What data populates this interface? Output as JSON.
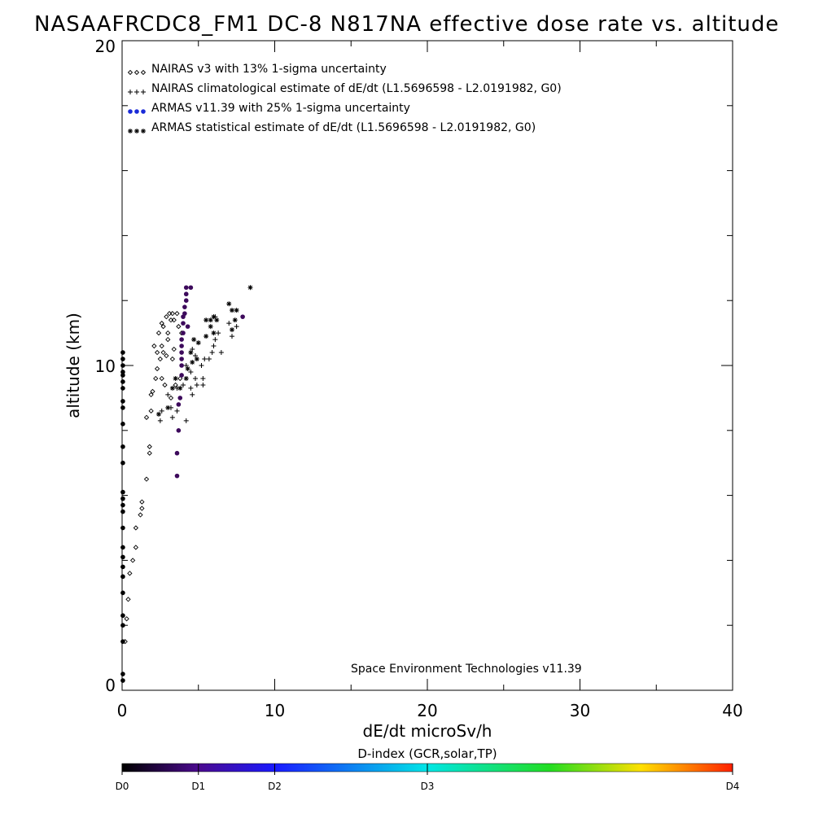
{
  "chart_data": {
    "type": "scatter",
    "title": "NASAAFRCDC8_FM1 DC-8   N817NA effective dose rate vs. altitude",
    "xlabel": "dE/dt microSv/h",
    "ylabel": "altitude (km)",
    "xlim": [
      0,
      40
    ],
    "ylim": [
      0,
      20
    ],
    "x_ticks": [
      "0",
      "10",
      "20",
      "30",
      "40"
    ],
    "y_ticks": [
      "0",
      "10",
      "20"
    ],
    "grid": false,
    "legend_placement": "top-left",
    "annotation": "Space Environment Technologies v11.39",
    "colorbar": {
      "title": "D-index (GCR,solar,TP)",
      "tick_labels": [
        "D0",
        "D1",
        "D2",
        "D3",
        "D4"
      ],
      "tick_positions": [
        0.0,
        0.125,
        0.25,
        0.5,
        1.0
      ]
    },
    "series": [
      {
        "name": "NAIRAS v3 with 13% 1-sigma uncertainty",
        "marker": "diamond",
        "color": "#000000",
        "points": [
          [
            0.2,
            1.5
          ],
          [
            0.3,
            2.2
          ],
          [
            0.4,
            2.8
          ],
          [
            0.5,
            3.6
          ],
          [
            0.7,
            4.0
          ],
          [
            0.9,
            4.4
          ],
          [
            0.9,
            5.0
          ],
          [
            1.2,
            5.4
          ],
          [
            1.3,
            5.8
          ],
          [
            1.3,
            5.6
          ],
          [
            1.6,
            6.5
          ],
          [
            1.8,
            7.3
          ],
          [
            1.8,
            7.5
          ],
          [
            1.9,
            8.6
          ],
          [
            1.6,
            8.4
          ],
          [
            1.9,
            9.1
          ],
          [
            2.0,
            9.2
          ],
          [
            2.2,
            9.6
          ],
          [
            2.6,
            9.6
          ],
          [
            2.3,
            9.9
          ],
          [
            2.8,
            9.4
          ],
          [
            2.5,
            10.2
          ],
          [
            2.9,
            10.3
          ],
          [
            2.3,
            10.4
          ],
          [
            2.6,
            10.6
          ],
          [
            2.7,
            10.4
          ],
          [
            3.0,
            10.8
          ],
          [
            2.1,
            10.6
          ],
          [
            2.4,
            11.0
          ],
          [
            2.7,
            11.2
          ],
          [
            3.0,
            11.0
          ],
          [
            3.2,
            11.4
          ],
          [
            2.6,
            11.3
          ],
          [
            3.4,
            11.4
          ],
          [
            3.7,
            11.2
          ],
          [
            3.9,
            11.0
          ],
          [
            3.3,
            10.2
          ],
          [
            3.5,
            9.4
          ],
          [
            3.8,
            9.6
          ],
          [
            3.2,
            9.0
          ],
          [
            3.4,
            10.5
          ],
          [
            2.9,
            11.5
          ],
          [
            3.1,
            11.6
          ],
          [
            3.6,
            11.6
          ],
          [
            3.3,
            11.6
          ]
        ]
      },
      {
        "name": "NAIRAS climatological estimate of dE/dt (L1.5696598 - L2.0191982, G0)",
        "marker": "plus",
        "color": "#000000",
        "points": [
          [
            2.5,
            8.3
          ],
          [
            3.3,
            8.4
          ],
          [
            3.6,
            8.6
          ],
          [
            4.2,
            8.3
          ],
          [
            2.6,
            8.6
          ],
          [
            3.2,
            8.7
          ],
          [
            3.0,
            9.1
          ],
          [
            3.6,
            9.3
          ],
          [
            4.0,
            9.4
          ],
          [
            4.5,
            9.3
          ],
          [
            4.6,
            9.1
          ],
          [
            4.9,
            9.4
          ],
          [
            5.3,
            9.4
          ],
          [
            5.3,
            9.6
          ],
          [
            4.8,
            9.6
          ],
          [
            4.5,
            9.8
          ],
          [
            4.2,
            10.0
          ],
          [
            4.8,
            10.3
          ],
          [
            5.2,
            10.0
          ],
          [
            5.4,
            10.2
          ],
          [
            4.6,
            10.5
          ],
          [
            5.7,
            10.2
          ],
          [
            5.9,
            10.4
          ],
          [
            6.0,
            10.6
          ],
          [
            6.5,
            10.4
          ],
          [
            6.1,
            10.8
          ],
          [
            6.3,
            11.0
          ],
          [
            7.2,
            10.9
          ],
          [
            7.5,
            11.2
          ],
          [
            6.1,
            11.5
          ],
          [
            7.0,
            11.3
          ]
        ]
      },
      {
        "name": "ARMAS v11.39 with 25% 1-sigma uncertainty",
        "marker": "circle",
        "color": "#1a2bd8",
        "points": [
          [
            0.05,
            0.3
          ],
          [
            0.05,
            0.5
          ],
          [
            0.05,
            1.5
          ],
          [
            0.05,
            2.0
          ],
          [
            0.05,
            2.3
          ],
          [
            0.05,
            3.0
          ],
          [
            0.05,
            3.5
          ],
          [
            0.05,
            3.8
          ],
          [
            0.05,
            4.1
          ],
          [
            0.05,
            4.4
          ],
          [
            0.05,
            5.0
          ],
          [
            0.05,
            5.5
          ],
          [
            0.05,
            5.7
          ],
          [
            0.05,
            5.9
          ],
          [
            0.05,
            6.1
          ],
          [
            0.05,
            7.0
          ],
          [
            0.05,
            7.5
          ],
          [
            0.05,
            8.2
          ],
          [
            0.05,
            8.7
          ],
          [
            0.05,
            8.9
          ],
          [
            0.05,
            9.3
          ],
          [
            0.05,
            9.5
          ],
          [
            0.05,
            9.7
          ],
          [
            0.05,
            9.8
          ],
          [
            0.05,
            10.0
          ],
          [
            0.05,
            10.2
          ],
          [
            0.05,
            10.4
          ],
          [
            3.6,
            6.6
          ],
          [
            3.6,
            7.3
          ],
          [
            3.7,
            8.0
          ],
          [
            3.7,
            8.8
          ],
          [
            3.8,
            9.0
          ],
          [
            3.9,
            9.7
          ],
          [
            3.9,
            10.0
          ],
          [
            3.9,
            10.2
          ],
          [
            3.9,
            10.4
          ],
          [
            3.9,
            10.6
          ],
          [
            3.9,
            10.8
          ],
          [
            4.0,
            11.0
          ],
          [
            4.0,
            11.3
          ],
          [
            4.1,
            11.6
          ],
          [
            4.1,
            11.8
          ],
          [
            4.2,
            12.0
          ],
          [
            4.2,
            12.2
          ],
          [
            4.0,
            11.5
          ],
          [
            4.3,
            11.2
          ],
          [
            4.5,
            12.4
          ],
          [
            4.2,
            12.4
          ],
          [
            7.9,
            11.5
          ]
        ]
      },
      {
        "name": "ARMAS statistical estimate of dE/dt (L1.5696598 - L2.0191982, G0)",
        "marker": "asterisk",
        "color": "#000000",
        "points": [
          [
            2.4,
            8.5
          ],
          [
            3.0,
            8.7
          ],
          [
            3.3,
            9.3
          ],
          [
            3.8,
            9.3
          ],
          [
            3.5,
            9.6
          ],
          [
            4.2,
            9.6
          ],
          [
            4.3,
            9.9
          ],
          [
            4.6,
            10.1
          ],
          [
            4.9,
            10.2
          ],
          [
            4.5,
            10.4
          ],
          [
            5.0,
            10.7
          ],
          [
            4.7,
            10.8
          ],
          [
            5.5,
            10.9
          ],
          [
            6.0,
            11.0
          ],
          [
            5.8,
            11.2
          ],
          [
            6.2,
            11.4
          ],
          [
            5.5,
            11.4
          ],
          [
            5.8,
            11.4
          ],
          [
            6.0,
            11.5
          ],
          [
            7.2,
            11.1
          ],
          [
            7.4,
            11.4
          ],
          [
            7.5,
            11.7
          ],
          [
            7.2,
            11.7
          ],
          [
            7.0,
            11.9
          ],
          [
            8.4,
            12.4
          ]
        ]
      }
    ]
  }
}
